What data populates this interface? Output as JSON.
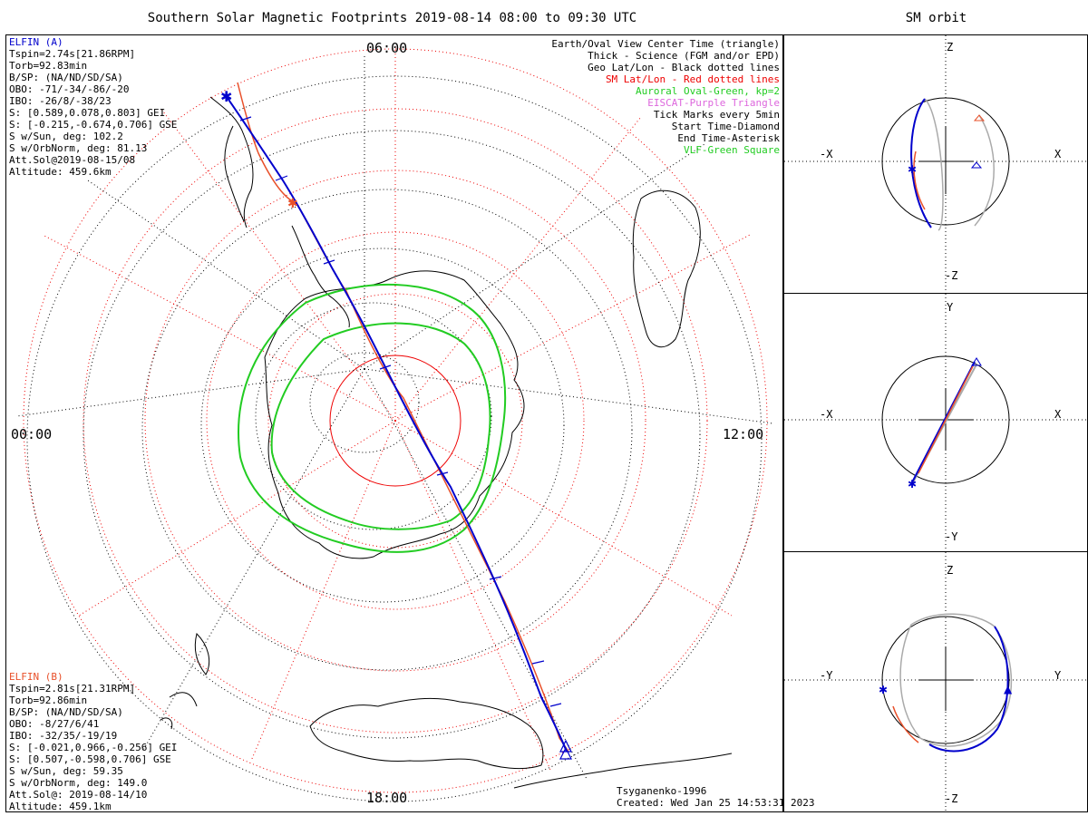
{
  "title": "Southern Solar Magnetic Footprints 2019-08-14 08:00 to 09:30 UTC",
  "orbit_title": "SM orbit",
  "time_labels": {
    "top": "06:00",
    "left": "00:00",
    "right": "12:00",
    "bottom": "18:00"
  },
  "elfin_a": {
    "name": "ELFIN (A)",
    "color": "#0000cc",
    "lines": [
      "Tspin=2.74s[21.86RPM]",
      "Torb=92.83min",
      "B/SP: (NA/ND/SD/SA)",
      "OBO: -71/-34/-86/-20",
      "IBO: -26/8/-38/23",
      "S: [0.589,0.078,0.803] GEI",
      "S: [-0.215,-0.674,0.706] GSE",
      "S w/Sun, deg: 102.2",
      "S w/OrbNorm, deg: 81.13",
      "Att.Sol@2019-08-15/08",
      "Altitude: 459.6km"
    ]
  },
  "elfin_b": {
    "name": "ELFIN (B)",
    "color": "#e8502a",
    "lines": [
      "Tspin=2.81s[21.31RPM]",
      "Torb=92.86min",
      "B/SP: (NA/ND/SD/SA)",
      "OBO: -8/27/6/41",
      "IBO: -32/35/-19/19",
      "S: [-0.021,0.966,-0.256] GEI",
      "S: [0.507,-0.598,0.706] GSE",
      "S w/Sun, deg: 59.35",
      "S w/OrbNorm, deg: 149.0",
      "Att.Sol@: 2019-08-14/10",
      "Altitude: 459.1km"
    ]
  },
  "legend": [
    {
      "text": "Earth/Oval View Center Time (triangle)",
      "color": "#000000"
    },
    {
      "text": "Thick - Science (FGM and/or EPD)",
      "color": "#000000"
    },
    {
      "text": "Geo Lat/Lon - Black dotted lines",
      "color": "#000000"
    },
    {
      "text": "SM Lat/Lon - Red dotted lines",
      "color": "#ee0000"
    },
    {
      "text": "Auroral Oval-Green, kp=2",
      "color": "#22cc22"
    },
    {
      "text": "EISCAT-Purple Triangle",
      "color": "#dd66dd"
    },
    {
      "text": "Tick Marks every 5min",
      "color": "#000000"
    },
    {
      "text": "Start Time-Diamond",
      "color": "#000000"
    },
    {
      "text": "End Time-Asterisk",
      "color": "#000000"
    },
    {
      "text": "VLF-Green Square",
      "color": "#22cc22"
    }
  ],
  "footer": {
    "model": "Tsyganenko-1996",
    "created": "Created: Wed Jan 25 14:53:31 2023"
  },
  "orbit_panels": [
    {
      "id": "xz",
      "h_neg": "-X",
      "h_pos": "X",
      "v_pos": "Z",
      "v_neg": "-Z"
    },
    {
      "id": "xy",
      "h_neg": "-X",
      "h_pos": "X",
      "v_pos": "Y",
      "v_neg": "-Y"
    },
    {
      "id": "yz",
      "h_neg": "-Y",
      "h_pos": "Y",
      "v_pos": "Z",
      "v_neg": "-Z"
    }
  ],
  "colors": {
    "elfin_a": "#0000cc",
    "elfin_b": "#e8502a",
    "geo_grid": "#000000",
    "sm_grid": "#ee0000",
    "auroral_oval": "#22cc22",
    "orbit_projection_b": "#aaaaaa"
  }
}
